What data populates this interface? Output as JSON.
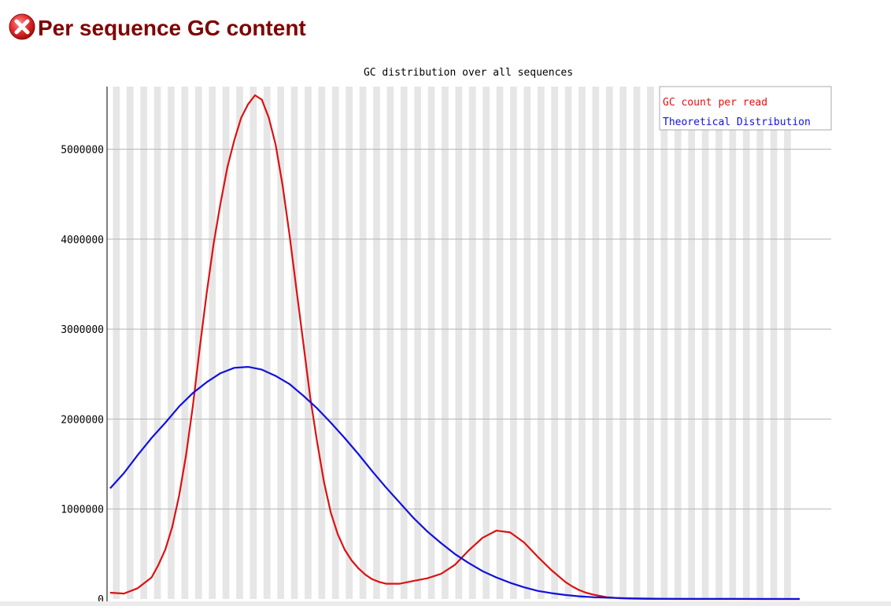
{
  "page": {
    "title": "Per sequence GC content",
    "status_icon": "error-icon",
    "status_color": "#e53030",
    "title_color": "#800000"
  },
  "chart_data": {
    "type": "line",
    "title": "GC distribution over all sequences",
    "xlabel": "",
    "ylabel": "",
    "xlim": [
      0,
      100
    ],
    "ylim": [
      0,
      5600000
    ],
    "y_ticks": [
      0,
      1000000,
      2000000,
      3000000,
      4000000,
      5000000
    ],
    "y_tick_labels": [
      "0",
      "1000000",
      "2000000",
      "3000000",
      "4000000",
      "5000000"
    ],
    "grid": "horizontal",
    "legend_position": "top-right",
    "series": [
      {
        "name": "GC count per read",
        "color": "#dd1111",
        "x": [
          0,
          2,
          4,
          6,
          7,
          8,
          9,
          10,
          11,
          12,
          13,
          14,
          15,
          16,
          17,
          18,
          19,
          20,
          21,
          22,
          23,
          24,
          25,
          26,
          27,
          28,
          29,
          30,
          31,
          32,
          33,
          34,
          35,
          36,
          37,
          38,
          39,
          40,
          42,
          44,
          46,
          48,
          50,
          52,
          54,
          56,
          58,
          60,
          62,
          64,
          66,
          67,
          68,
          69,
          70,
          72,
          74,
          76,
          78,
          80,
          82,
          84,
          86,
          88,
          90,
          95,
          100
        ],
        "values": [
          70000,
          60000,
          120000,
          240000,
          380000,
          550000,
          800000,
          1150000,
          1600000,
          2150000,
          2800000,
          3400000,
          3950000,
          4400000,
          4800000,
          5100000,
          5350000,
          5500000,
          5600000,
          5550000,
          5350000,
          5050000,
          4600000,
          4050000,
          3450000,
          2850000,
          2250000,
          1750000,
          1300000,
          960000,
          720000,
          550000,
          430000,
          340000,
          270000,
          220000,
          190000,
          170000,
          170000,
          200000,
          230000,
          280000,
          380000,
          540000,
          680000,
          760000,
          740000,
          630000,
          470000,
          320000,
          190000,
          140000,
          100000,
          70000,
          50000,
          20000,
          8000,
          3000,
          1000,
          500,
          200,
          100,
          0,
          0,
          0,
          0,
          0
        ]
      },
      {
        "name": "Theoretical Distribution",
        "color": "#1111dd",
        "x": [
          0,
          2,
          4,
          6,
          8,
          10,
          12,
          14,
          16,
          18,
          20,
          22,
          24,
          26,
          28,
          30,
          32,
          34,
          36,
          38,
          40,
          42,
          44,
          46,
          48,
          50,
          52,
          54,
          56,
          58,
          60,
          62,
          64,
          66,
          68,
          70,
          75,
          80,
          85,
          90,
          95,
          100
        ],
        "values": [
          1230000,
          1400000,
          1600000,
          1790000,
          1960000,
          2140000,
          2290000,
          2410000,
          2510000,
          2570000,
          2580000,
          2550000,
          2480000,
          2390000,
          2260000,
          2120000,
          1960000,
          1790000,
          1610000,
          1420000,
          1240000,
          1070000,
          900000,
          750000,
          620000,
          500000,
          400000,
          310000,
          240000,
          180000,
          130000,
          90000,
          65000,
          45000,
          30000,
          20000,
          8000,
          3000,
          1000,
          500,
          200,
          100
        ]
      }
    ]
  }
}
